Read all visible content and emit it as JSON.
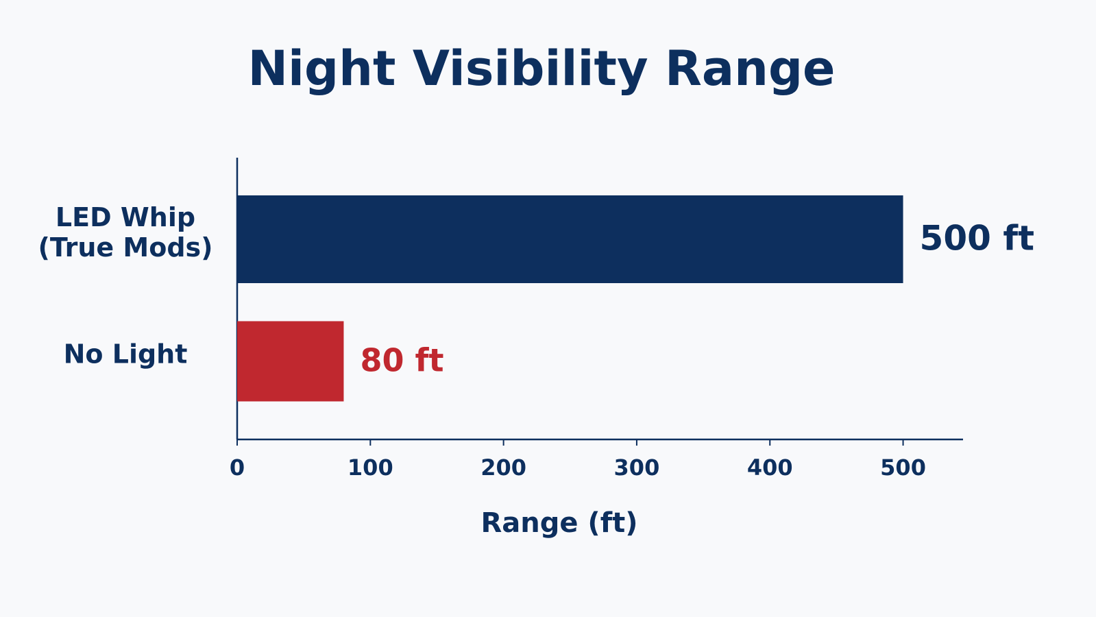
{
  "chart_data": {
    "type": "hbar",
    "title": "Night Visibility Range",
    "categories": [
      "LED Whip\n(True Mods)",
      "No Light"
    ],
    "values": [
      500,
      80
    ],
    "value_labels": [
      "500 ft",
      "80 ft"
    ],
    "colors": [
      "#0d2f5e",
      "#c0282f"
    ],
    "xlabel": "Range (ft)",
    "xlim": [
      0,
      545
    ],
    "xticks": [
      0,
      100,
      200,
      300,
      400,
      500
    ],
    "grid": false
  }
}
